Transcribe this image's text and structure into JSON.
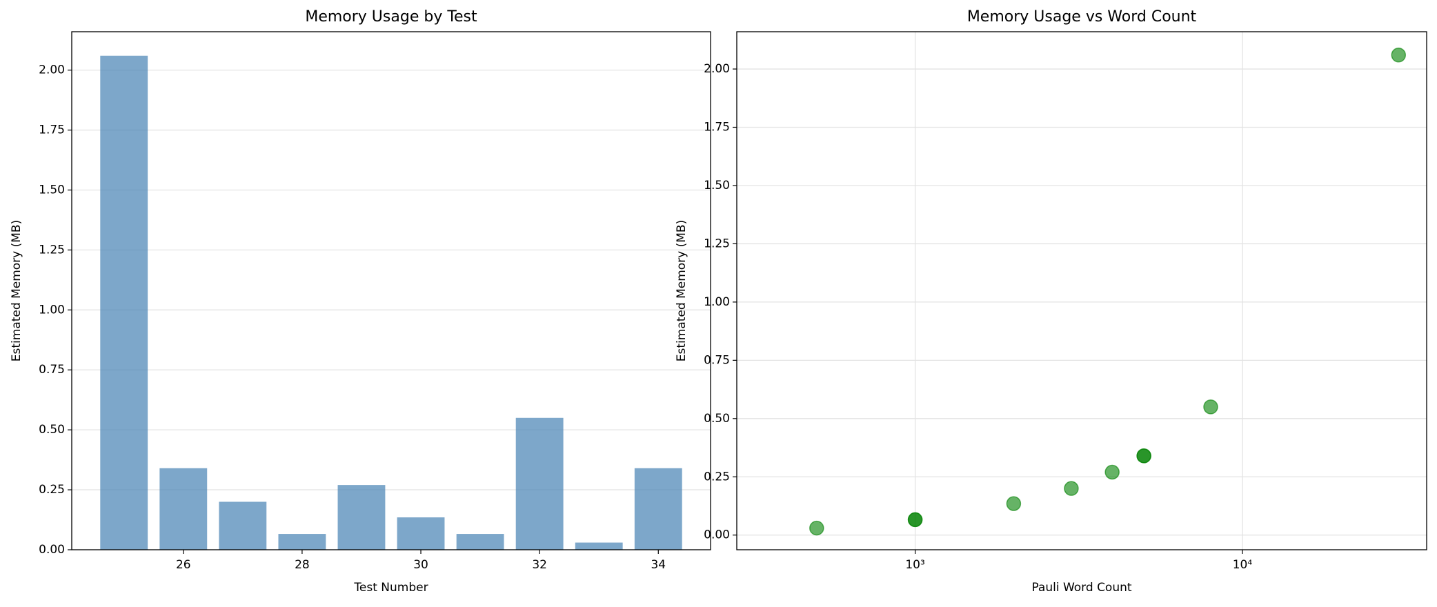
{
  "chart_data": [
    {
      "type": "bar",
      "title": "Memory Usage by Test",
      "xlabel": "Test Number",
      "ylabel": "Estimated Memory (MB)",
      "x": [
        25,
        26,
        27,
        28,
        29,
        30,
        31,
        32,
        33,
        34
      ],
      "values": [
        2.06,
        0.34,
        0.2,
        0.066,
        0.27,
        0.135,
        0.066,
        0.55,
        0.03,
        0.34
      ],
      "color": "#4682b4",
      "opacity": 0.7,
      "bar_width": 0.8,
      "xlim": [
        24.12,
        34.88
      ],
      "xticks": [
        26,
        28,
        30,
        32,
        34
      ],
      "ylim": [
        0,
        2.16
      ],
      "yticks": [
        {
          "value": 0,
          "label": "0.00"
        },
        {
          "value": 0.25,
          "label": "0.25"
        },
        {
          "value": 0.5,
          "label": "0.50"
        },
        {
          "value": 0.75,
          "label": "0.75"
        },
        {
          "value": 1,
          "label": "1.00"
        },
        {
          "value": 1.25,
          "label": "1.25"
        },
        {
          "value": 1.5,
          "label": "1.50"
        },
        {
          "value": 1.75,
          "label": "1.75"
        },
        {
          "value": 2,
          "label": "2.00"
        }
      ],
      "grid": "y"
    },
    {
      "type": "scatter",
      "title": "Memory Usage vs Word Count",
      "xlabel": "Pauli Word Count",
      "ylabel": "Estimated Memory (MB)",
      "x": [
        30000,
        5000,
        3000,
        1000,
        4000,
        2000,
        1000,
        8000,
        500,
        5000
      ],
      "values": [
        2.06,
        0.34,
        0.2,
        0.066,
        0.27,
        0.135,
        0.066,
        0.55,
        0.03,
        0.34
      ],
      "color": "#008000",
      "opacity": 0.6,
      "xlog": true,
      "xlim": [
        285,
        36560
      ],
      "xticks": [
        {
          "value": 1000,
          "label": "10³"
        },
        {
          "value": 10000,
          "label": "10⁴"
        }
      ],
      "ylim": [
        -0.063,
        2.16
      ],
      "yticks": [
        {
          "value": 0,
          "label": "0.00"
        },
        {
          "value": 0.25,
          "label": "0.25"
        },
        {
          "value": 0.5,
          "label": "0.50"
        },
        {
          "value": 0.75,
          "label": "0.75"
        },
        {
          "value": 1,
          "label": "1.00"
        },
        {
          "value": 1.25,
          "label": "1.25"
        },
        {
          "value": 1.5,
          "label": "1.50"
        },
        {
          "value": 1.75,
          "label": "1.75"
        },
        {
          "value": 2,
          "label": "2.00"
        }
      ],
      "grid": "both"
    }
  ]
}
